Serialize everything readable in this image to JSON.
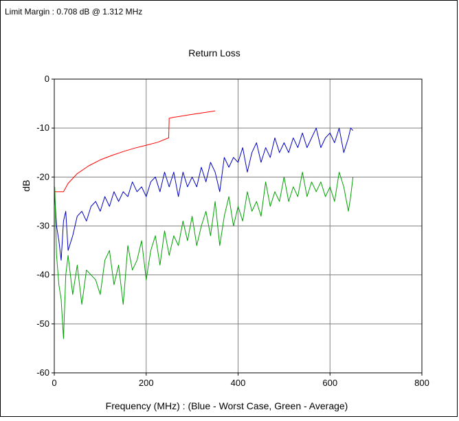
{
  "header": {
    "limit_margin": "Limit Margin : 0.708 dB @ 1.312 MHz"
  },
  "chart_data": {
    "type": "line",
    "title": "Return Loss",
    "xlabel": "Frequency (MHz) : (Blue - Worst Case, Green - Average)",
    "ylabel": "dB",
    "xlim": [
      0,
      800
    ],
    "ylim": [
      -60,
      0
    ],
    "xticks": [
      0,
      200,
      400,
      600,
      800
    ],
    "yticks": [
      0,
      -10,
      -20,
      -30,
      -40,
      -50,
      -60
    ],
    "grid": true,
    "series": [
      {
        "color": "#ff0000",
        "role": "limit",
        "x": [
          1,
          20,
          30,
          50,
          75,
          100,
          125,
          150,
          175,
          200,
          225,
          249,
          250,
          260,
          300,
          350
        ],
        "y": [
          -23,
          -23,
          -21.3,
          -19.3,
          -17.7,
          -16.5,
          -15.6,
          -14.8,
          -14.1,
          -13.5,
          -12.9,
          -12.0,
          -8.0,
          -7.8,
          -7.2,
          -6.5
        ]
      },
      {
        "color": "#0000c0",
        "role": "worst-case",
        "x": [
          1,
          5,
          10,
          15,
          20,
          25,
          30,
          40,
          50,
          60,
          70,
          80,
          90,
          100,
          110,
          120,
          130,
          140,
          150,
          160,
          170,
          180,
          190,
          200,
          210,
          220,
          230,
          240,
          250,
          260,
          270,
          280,
          290,
          300,
          310,
          320,
          330,
          340,
          350,
          360,
          370,
          380,
          390,
          400,
          410,
          420,
          430,
          440,
          450,
          460,
          470,
          480,
          490,
          500,
          510,
          520,
          530,
          540,
          550,
          560,
          570,
          580,
          590,
          600,
          610,
          620,
          630,
          640,
          645,
          650
        ],
        "y": [
          -24,
          -30,
          -33,
          -37,
          -29,
          -27,
          -35,
          -32,
          -28,
          -27,
          -29,
          -26,
          -25,
          -27,
          -24,
          -26,
          -23,
          -25,
          -23,
          -24,
          -21,
          -23,
          -22,
          -24,
          -21,
          -20,
          -23,
          -19,
          -22,
          -19,
          -24,
          -19,
          -22,
          -20,
          -22,
          -18,
          -21,
          -17,
          -19,
          -23,
          -16,
          -18,
          -16,
          -17,
          -14,
          -19,
          -15,
          -13,
          -17,
          -14,
          -16,
          -12,
          -15,
          -13,
          -15,
          -12,
          -14,
          -11,
          -14,
          -12,
          -10,
          -14,
          -12,
          -11,
          -13,
          -10,
          -15,
          -12,
          -10,
          -10.5
        ]
      },
      {
        "color": "#00a000",
        "role": "average",
        "x": [
          1,
          5,
          10,
          15,
          20,
          25,
          30,
          40,
          50,
          60,
          70,
          80,
          90,
          100,
          110,
          120,
          130,
          140,
          150,
          160,
          170,
          180,
          190,
          200,
          210,
          220,
          230,
          240,
          250,
          260,
          270,
          280,
          290,
          300,
          310,
          320,
          330,
          340,
          350,
          360,
          370,
          380,
          390,
          400,
          410,
          420,
          430,
          440,
          450,
          460,
          470,
          480,
          490,
          500,
          510,
          520,
          530,
          540,
          550,
          560,
          570,
          580,
          590,
          600,
          610,
          620,
          630,
          640,
          645,
          650
        ],
        "y": [
          -22,
          -36,
          -42,
          -45,
          -53,
          -40,
          -36,
          -44,
          -38,
          -46,
          -39,
          -40,
          -41,
          -44,
          -37,
          -35,
          -42,
          -38,
          -46,
          -34,
          -39,
          -37,
          -33,
          -41,
          -35,
          -32,
          -38,
          -31,
          -36,
          -32,
          -34,
          -29,
          -33,
          -28,
          -34,
          -30,
          -27,
          -32,
          -25,
          -34,
          -28,
          -24,
          -30,
          -26,
          -29,
          -23,
          -27,
          -25,
          -28,
          -21,
          -26,
          -23,
          -25,
          -20,
          -25,
          -22,
          -24,
          -19,
          -24,
          -21,
          -23,
          -21,
          -24,
          -22,
          -25,
          -19,
          -22,
          -27,
          -24,
          -20
        ]
      }
    ]
  }
}
